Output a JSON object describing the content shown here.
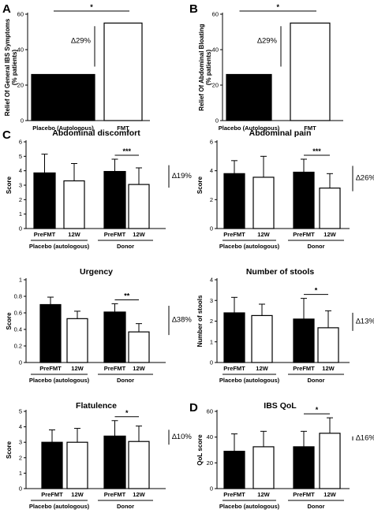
{
  "chart_data": [
    {
      "panel": "A",
      "type": "bar",
      "categories": [
        "Placebo (Autologous)",
        "FMT"
      ],
      "values": [
        26,
        55
      ],
      "fills": [
        "#000000",
        "#ffffff"
      ],
      "ylabel": "Relief Of General IBS Symptoms (% patients)",
      "ylim": [
        0,
        60
      ],
      "yticks": [
        0,
        20,
        40,
        60
      ],
      "significance": "*",
      "delta": "∆29%"
    },
    {
      "panel": "B",
      "type": "bar",
      "categories": [
        "Placebo (Autologous)",
        "FMT"
      ],
      "values": [
        26,
        55
      ],
      "fills": [
        "#000000",
        "#ffffff"
      ],
      "ylabel": "Relief Of Abdominal Bloating (% patients)",
      "ylim": [
        0,
        60
      ],
      "yticks": [
        0,
        20,
        40,
        60
      ],
      "significance": "*",
      "delta": "∆29%"
    },
    {
      "panel": "C",
      "type": "bar",
      "title": "Abdominal discomfort",
      "ylabel": "Score",
      "ylim": [
        0,
        6
      ],
      "yticks": [
        0,
        1,
        2,
        3,
        4,
        5,
        6
      ],
      "categories": [
        "PreFMT",
        "12W",
        "PreFMT",
        "12W"
      ],
      "groups": [
        "Placebo (autologous)",
        "Donor"
      ],
      "values": [
        3.85,
        3.3,
        3.95,
        3.05
      ],
      "errors": [
        1.3,
        1.2,
        0.85,
        1.15
      ],
      "significance": "***",
      "delta": "∆19%"
    },
    {
      "panel": "",
      "type": "bar",
      "title": "Abdominal pain",
      "ylabel": "Score",
      "ylim": [
        0,
        6
      ],
      "yticks": [
        0,
        2,
        4,
        6
      ],
      "categories": [
        "PreFMT",
        "12W",
        "PreFMT",
        "12W"
      ],
      "groups": [
        "Placebo (autologous)",
        "Donor"
      ],
      "values": [
        3.8,
        3.55,
        3.9,
        2.8
      ],
      "errors": [
        0.9,
        1.45,
        0.9,
        1.0
      ],
      "significance": "***",
      "delta": "∆26%"
    },
    {
      "panel": "",
      "type": "bar",
      "title": "Urgency",
      "ylabel": "Score",
      "ylim": [
        0,
        1.0
      ],
      "yticks": [
        0.0,
        0.2,
        0.4,
        0.6,
        0.8,
        1.0
      ],
      "categories": [
        "PreFMT",
        "12W",
        "PreFMT",
        "12W"
      ],
      "groups": [
        "Placebo (autologous)",
        "Donor"
      ],
      "values": [
        0.7,
        0.53,
        0.61,
        0.37
      ],
      "errors": [
        0.09,
        0.09,
        0.1,
        0.1
      ],
      "significance": "**",
      "delta": "∆38%"
    },
    {
      "panel": "",
      "type": "bar",
      "title": "Number of stools",
      "ylabel": "Number of stools",
      "ylim": [
        0,
        4
      ],
      "yticks": [
        0,
        1,
        2,
        3,
        4
      ],
      "categories": [
        "PreFMT",
        "12W",
        "PreFMT",
        "12W"
      ],
      "groups": [
        "Placebo (autologous)",
        "Donor"
      ],
      "values": [
        2.4,
        2.27,
        2.1,
        1.68
      ],
      "errors": [
        0.75,
        0.55,
        1.0,
        0.82
      ],
      "significance": "*",
      "delta": "∆13%"
    },
    {
      "panel": "",
      "type": "bar",
      "title": "Flatulence",
      "ylabel": "Score",
      "ylim": [
        0,
        5
      ],
      "yticks": [
        0,
        1,
        2,
        3,
        4,
        5
      ],
      "categories": [
        "PreFMT",
        "12W",
        "PreFMT",
        "12W"
      ],
      "groups": [
        "Placebo (autologous)",
        "Donor"
      ],
      "values": [
        3.0,
        3.0,
        3.4,
        3.05
      ],
      "errors": [
        0.8,
        0.9,
        1.0,
        1.0
      ],
      "significance": "*",
      "delta": "∆10%"
    },
    {
      "panel": "D",
      "type": "bar",
      "title": "IBS QoL",
      "ylabel": "QoL score",
      "ylim": [
        0,
        60
      ],
      "yticks": [
        0,
        20,
        40,
        60
      ],
      "categories": [
        "PreFMT",
        "12W",
        "PreFMT",
        "12W"
      ],
      "groups": [
        "Placebo (autologous)",
        "Donor"
      ],
      "values": [
        29,
        32.5,
        32.5,
        43
      ],
      "errors": [
        13.5,
        12,
        12,
        12
      ],
      "significance": "*",
      "delta": "∆16%"
    }
  ]
}
